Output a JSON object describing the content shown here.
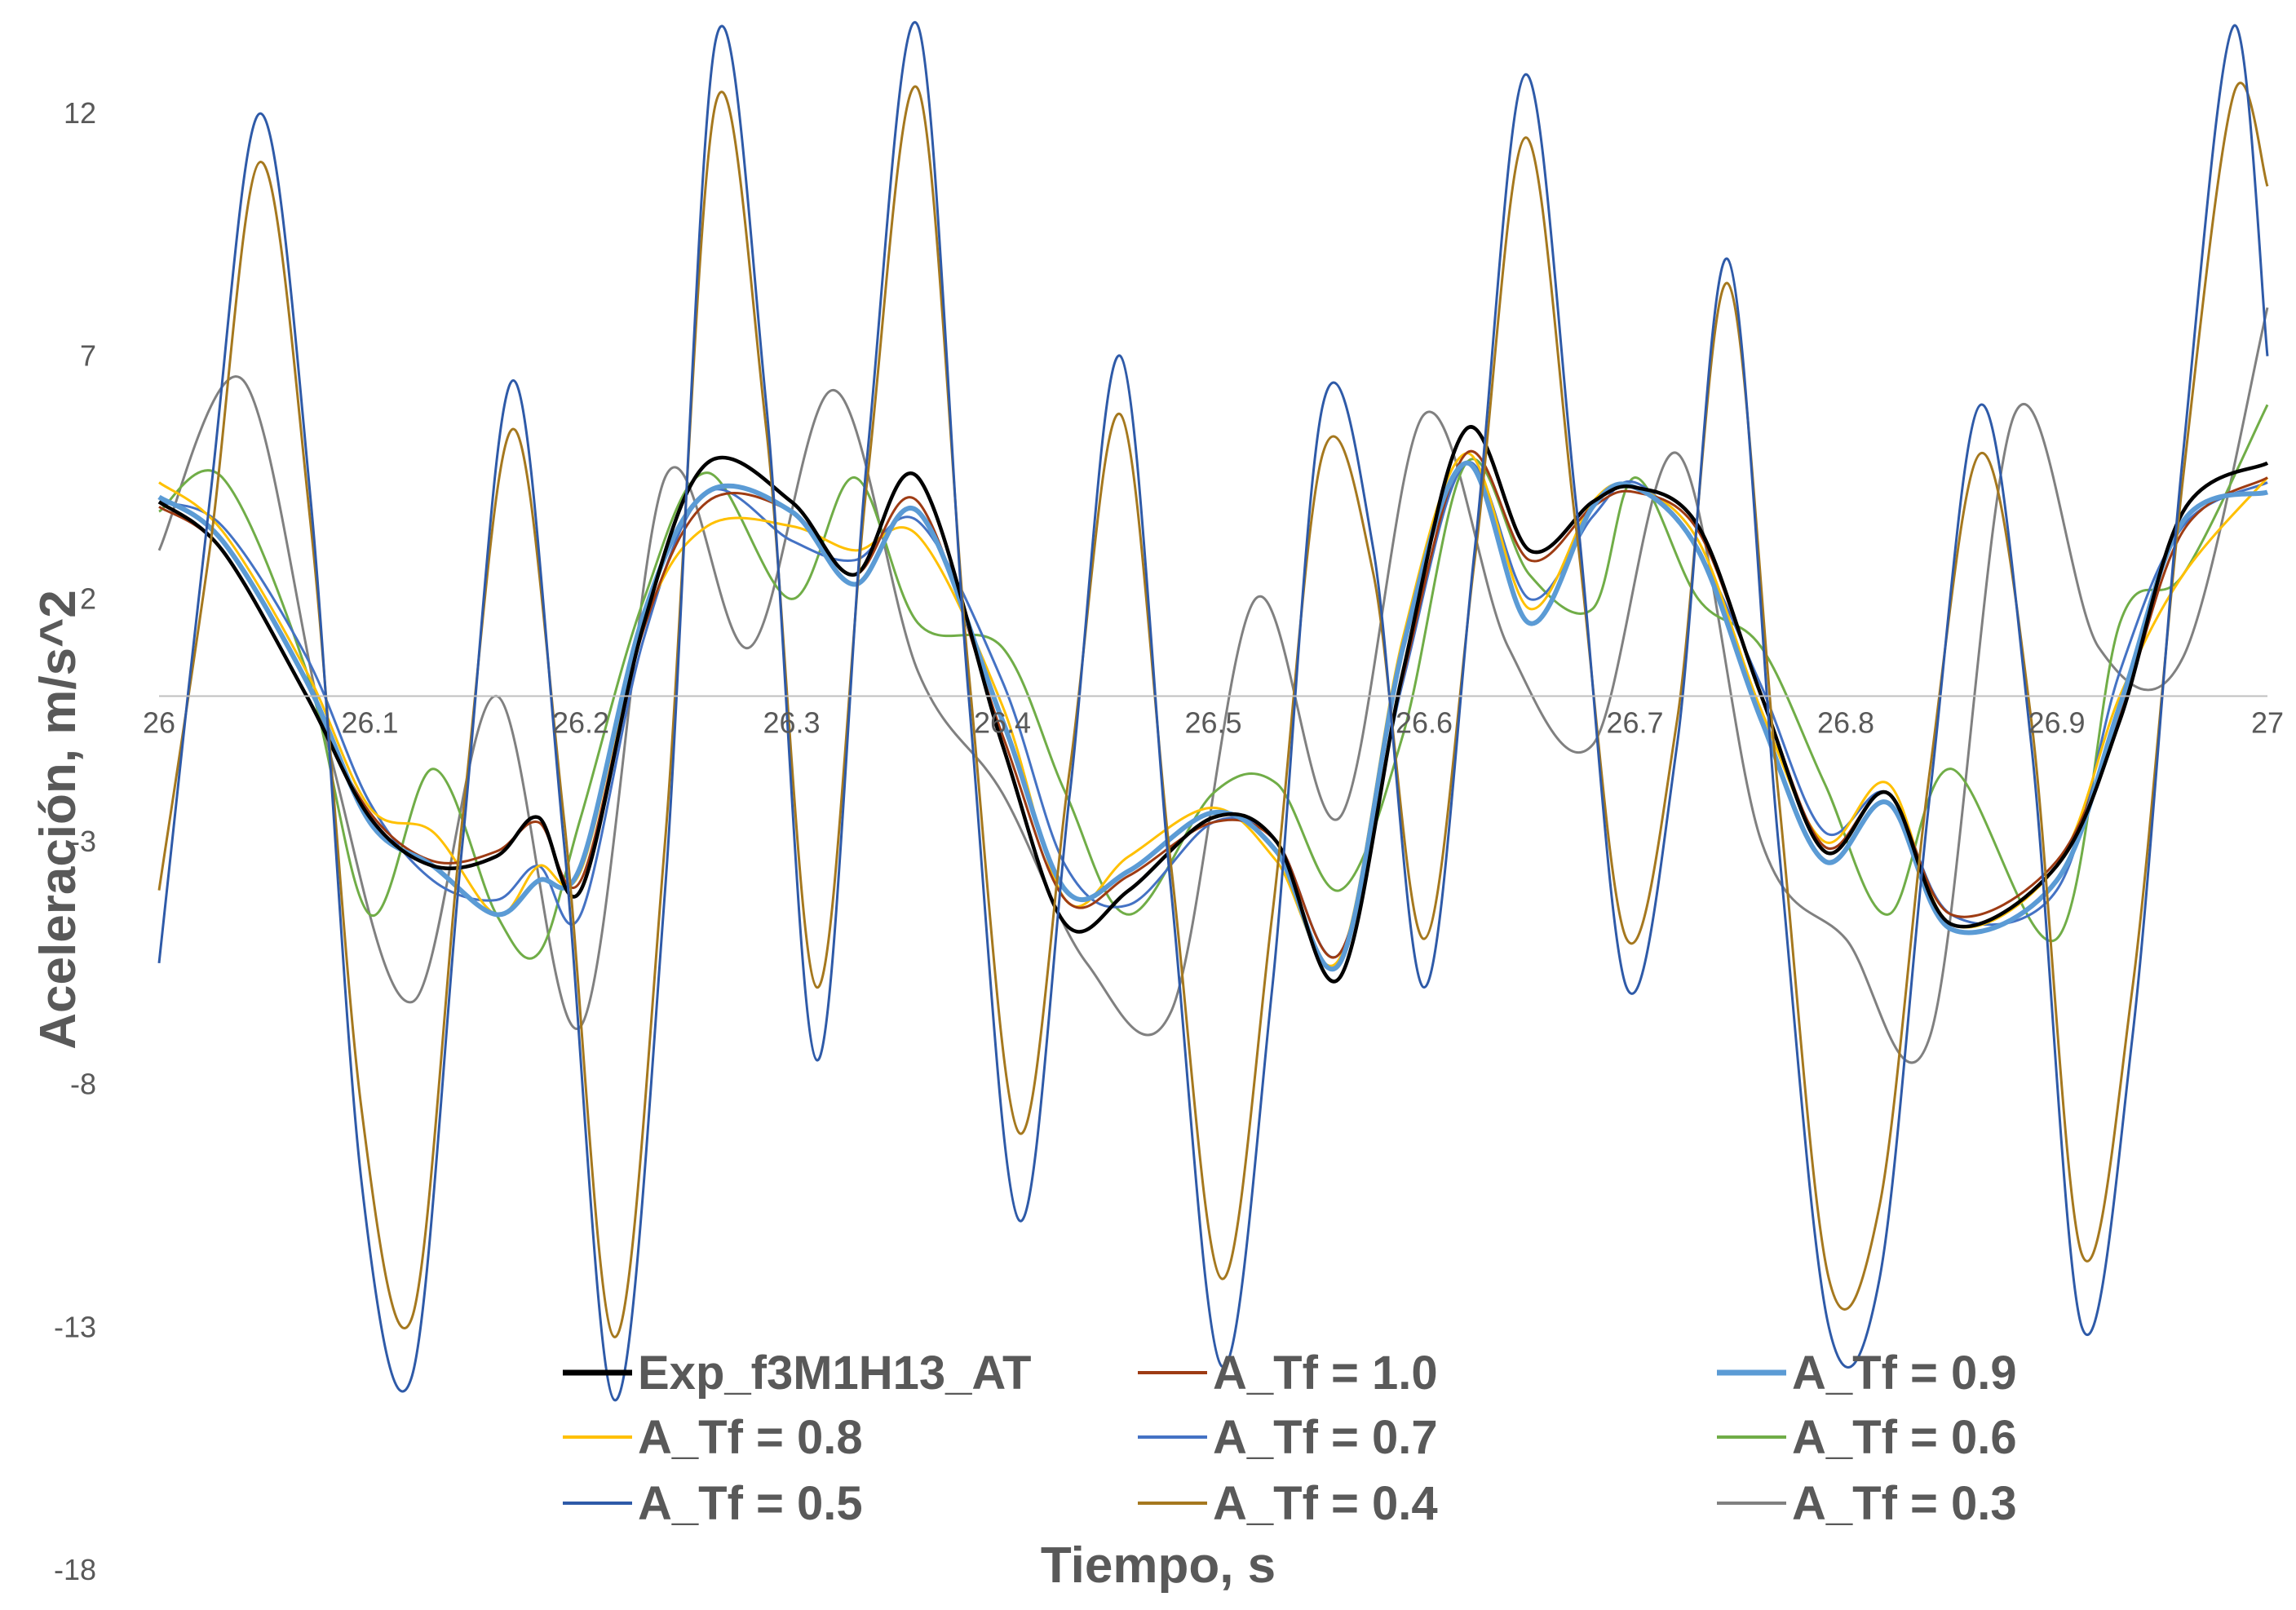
{
  "chart_data": {
    "type": "line",
    "xlabel": "Tiempo, s",
    "ylabel": "Aceleración, m/s^2",
    "xlim": [
      26.0,
      27.0
    ],
    "ylim": [
      -18,
      14
    ],
    "x_ticks": [
      "26",
      "26.1",
      "26.2",
      "26.3",
      "26.4",
      "26.5",
      "26.6",
      "26.7",
      "26.8",
      "26.9",
      "27"
    ],
    "y_ticks": [
      "12",
      "7",
      "2",
      "-3",
      "-8",
      "-13",
      "-18"
    ],
    "x_axis_crosses_y": 0,
    "legend_position": "bottom",
    "grid": false,
    "series": [
      {
        "name": "Exp_f3M1H13_AT",
        "color": "#000000",
        "x": [
          26.0,
          26.03,
          26.07,
          26.1,
          26.13,
          26.16,
          26.18,
          26.2,
          26.23,
          26.26,
          26.3,
          26.33,
          26.36,
          26.4,
          26.43,
          26.46,
          26.5,
          26.53,
          26.56,
          26.59,
          26.62,
          26.65,
          26.68,
          26.7,
          26.73,
          26.76,
          26.79,
          26.82,
          26.85,
          26.9,
          26.93,
          26.96,
          27.0
        ],
        "y": [
          4.0,
          3.0,
          0.0,
          -2.5,
          -3.5,
          -3.3,
          -2.5,
          -4.0,
          1.5,
          4.8,
          4.0,
          2.5,
          4.5,
          -1.0,
          -4.7,
          -4.0,
          -2.5,
          -3.0,
          -5.8,
          0.5,
          5.5,
          3.0,
          4.0,
          4.3,
          3.5,
          0.0,
          -3.2,
          -2.0,
          -4.7,
          -3.5,
          -0.5,
          3.8,
          4.8
        ]
      },
      {
        "name": "A_Tf = 1.0",
        "color": "#9E3B13",
        "x": [
          26.0,
          26.03,
          26.07,
          26.1,
          26.13,
          26.16,
          26.18,
          26.2,
          26.23,
          26.26,
          26.3,
          26.33,
          26.36,
          26.4,
          26.43,
          26.46,
          26.5,
          26.53,
          26.56,
          26.59,
          26.62,
          26.65,
          26.68,
          26.7,
          26.73,
          26.76,
          26.79,
          26.82,
          26.85,
          26.9,
          26.93,
          26.96,
          27.0
        ],
        "y": [
          3.9,
          3.0,
          0.0,
          -2.4,
          -3.4,
          -3.2,
          -2.6,
          -3.8,
          1.4,
          4.0,
          3.8,
          2.5,
          4.0,
          -0.8,
          -4.2,
          -3.7,
          -2.6,
          -3.0,
          -5.3,
          0.4,
          5.0,
          2.8,
          3.9,
          4.2,
          3.4,
          0.0,
          -3.1,
          -2.0,
          -4.5,
          -3.4,
          -0.4,
          3.4,
          4.5
        ]
      },
      {
        "name": "A_Tf = 0.9",
        "color": "#5B9BD5",
        "x": [
          26.0,
          26.03,
          26.07,
          26.1,
          26.13,
          26.16,
          26.18,
          26.2,
          26.23,
          26.26,
          26.3,
          26.33,
          26.36,
          26.4,
          26.43,
          26.46,
          26.5,
          26.53,
          26.56,
          26.59,
          26.62,
          26.65,
          26.68,
          26.7,
          26.73,
          26.76,
          26.79,
          26.82,
          26.85,
          26.9,
          26.93,
          26.96,
          27.0
        ],
        "y": [
          4.1,
          3.2,
          0.3,
          -2.6,
          -3.5,
          -4.5,
          -3.8,
          -3.5,
          1.7,
          4.2,
          3.8,
          2.3,
          3.8,
          -0.5,
          -4.0,
          -3.6,
          -2.4,
          -3.2,
          -5.5,
          1.0,
          4.8,
          1.5,
          3.9,
          4.3,
          3.0,
          -0.5,
          -3.4,
          -2.2,
          -4.8,
          -3.8,
          -0.2,
          3.6,
          4.2
        ]
      },
      {
        "name": "A_Tf = 0.8",
        "color": "#FFC000",
        "x": [
          26.0,
          26.03,
          26.07,
          26.1,
          26.13,
          26.16,
          26.18,
          26.2,
          26.23,
          26.26,
          26.3,
          26.33,
          26.36,
          26.4,
          26.43,
          26.46,
          26.5,
          26.53,
          26.56,
          26.59,
          26.62,
          26.65,
          26.68,
          26.7,
          26.73,
          26.76,
          26.79,
          26.82,
          26.85,
          26.9,
          26.93,
          26.96,
          27.0
        ],
        "y": [
          4.4,
          3.4,
          0.5,
          -2.3,
          -2.8,
          -4.5,
          -3.5,
          -3.6,
          1.5,
          3.5,
          3.5,
          3.0,
          3.3,
          -0.2,
          -4.2,
          -3.3,
          -2.3,
          -3.4,
          -5.4,
          1.2,
          5.0,
          1.8,
          4.0,
          4.3,
          3.2,
          -0.3,
          -3.0,
          -1.8,
          -4.7,
          -3.5,
          0.0,
          2.5,
          4.5
        ]
      },
      {
        "name": "A_Tf = 0.7",
        "color": "#4472C4",
        "x": [
          26.0,
          26.03,
          26.07,
          26.1,
          26.13,
          26.16,
          26.18,
          26.2,
          26.23,
          26.26,
          26.3,
          26.33,
          26.36,
          26.4,
          26.43,
          26.46,
          26.5,
          26.53,
          26.56,
          26.59,
          26.62,
          26.65,
          26.68,
          26.7,
          26.73,
          26.76,
          26.79,
          26.82,
          26.85,
          26.9,
          26.93,
          26.96,
          27.0
        ],
        "y": [
          4.0,
          3.5,
          0.8,
          -2.2,
          -3.8,
          -4.2,
          -3.5,
          -4.5,
          1.2,
          4.2,
          3.2,
          2.8,
          3.6,
          0.3,
          -3.5,
          -4.3,
          -2.6,
          -3.0,
          -5.3,
          0.3,
          4.8,
          2.0,
          3.7,
          4.4,
          3.0,
          0.2,
          -2.8,
          -2.0,
          -4.5,
          -4.0,
          0.5,
          3.5,
          4.4
        ]
      },
      {
        "name": "A_Tf = 0.6",
        "color": "#70AD47",
        "x": [
          26.0,
          26.03,
          26.07,
          26.1,
          26.13,
          26.16,
          26.18,
          26.2,
          26.23,
          26.26,
          26.3,
          26.33,
          26.36,
          26.4,
          26.43,
          26.46,
          26.5,
          26.53,
          26.56,
          26.59,
          26.62,
          26.65,
          26.68,
          26.7,
          26.73,
          26.76,
          26.79,
          26.82,
          26.85,
          26.9,
          26.93,
          26.96,
          27.0
        ],
        "y": [
          3.8,
          4.5,
          0.5,
          -4.5,
          -1.5,
          -4.5,
          -5.3,
          -2.5,
          2.0,
          4.6,
          2.0,
          4.5,
          1.5,
          1.0,
          -2.0,
          -4.5,
          -2.0,
          -1.8,
          -4.0,
          -0.8,
          4.8,
          2.5,
          1.8,
          4.5,
          2.0,
          1.0,
          -1.8,
          -4.5,
          -1.5,
          -5.0,
          1.5,
          2.5,
          6.0
        ]
      },
      {
        "name": "A_Tf = 0.5",
        "color": "#2E5AA8",
        "x": [
          26.0,
          26.024,
          26.048,
          26.072,
          26.096,
          26.12,
          26.144,
          26.168,
          26.192,
          26.216,
          26.24,
          26.264,
          26.288,
          26.312,
          26.336,
          26.36,
          26.384,
          26.408,
          26.432,
          26.456,
          26.48,
          26.504,
          26.528,
          26.552,
          26.576,
          26.6,
          26.624,
          26.648,
          26.672,
          26.696,
          26.72,
          26.744,
          26.768,
          26.792,
          26.816,
          26.84,
          26.864,
          26.888,
          26.912,
          26.936,
          26.96,
          26.984,
          27.0
        ],
        "y": [
          -5.5,
          4.0,
          12.0,
          4.0,
          -10.0,
          -14.0,
          -3.0,
          6.5,
          -3.0,
          -14.5,
          -4.0,
          13.5,
          6.0,
          -7.5,
          5.0,
          13.8,
          0.0,
          -10.8,
          -2.0,
          7.0,
          -4.0,
          -13.8,
          -6.0,
          6.0,
          3.0,
          -6.0,
          3.0,
          12.8,
          4.0,
          -6.0,
          -1.0,
          9.0,
          -3.0,
          -13.0,
          -12.0,
          -2.0,
          6.0,
          -1.0,
          -13.0,
          -7.0,
          5.0,
          13.8,
          7.0
        ]
      },
      {
        "name": "A_Tf = 0.4",
        "color": "#A5781E",
        "x": [
          26.0,
          26.024,
          26.048,
          26.072,
          26.096,
          26.12,
          26.144,
          26.168,
          26.192,
          26.216,
          26.24,
          26.264,
          26.288,
          26.312,
          26.336,
          26.36,
          26.384,
          26.408,
          26.432,
          26.456,
          26.48,
          26.504,
          26.528,
          26.552,
          26.576,
          26.6,
          26.624,
          26.648,
          26.672,
          26.696,
          26.72,
          26.744,
          26.768,
          26.792,
          26.816,
          26.84,
          26.864,
          26.888,
          26.912,
          26.936,
          26.96,
          26.984,
          27.0
        ],
        "y": [
          -4.0,
          3.0,
          11.0,
          3.5,
          -8.5,
          -12.8,
          -2.5,
          5.5,
          -2.5,
          -13.2,
          -3.0,
          12.2,
          5.5,
          -6.0,
          4.5,
          12.5,
          0.5,
          -9.0,
          -1.5,
          5.8,
          -3.5,
          -12.0,
          -4.5,
          5.0,
          2.5,
          -5.0,
          2.8,
          11.5,
          3.5,
          -5.0,
          -0.5,
          8.5,
          -2.0,
          -12.0,
          -10.5,
          -1.5,
          5.0,
          -0.5,
          -11.5,
          -6.0,
          4.5,
          12.4,
          10.5
        ]
      },
      {
        "name": "A_Tf = 0.3",
        "color": "#808080",
        "x": [
          26.0,
          26.04,
          26.08,
          26.12,
          26.16,
          26.2,
          26.24,
          26.28,
          26.32,
          26.36,
          26.4,
          26.44,
          26.48,
          26.52,
          26.56,
          26.6,
          26.64,
          26.68,
          26.72,
          26.76,
          26.8,
          26.84,
          26.88,
          26.92,
          26.96,
          27.0
        ],
        "y": [
          3.0,
          6.5,
          -1.0,
          -6.3,
          0.0,
          -6.8,
          4.5,
          1.0,
          6.3,
          0.5,
          -2.0,
          -5.5,
          -6.5,
          2.0,
          -2.5,
          5.8,
          1.0,
          -1.0,
          5.0,
          -3.0,
          -5.0,
          -7.0,
          5.8,
          1.0,
          0.8,
          8.0
        ]
      }
    ]
  }
}
